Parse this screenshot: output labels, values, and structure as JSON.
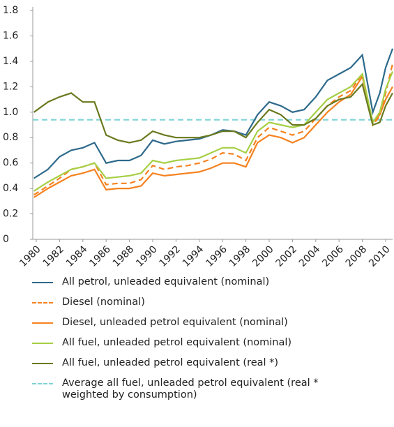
{
  "chart_data": {
    "type": "line",
    "x": [
      1979.8,
      1981,
      1982,
      1983,
      1984,
      1985,
      1986,
      1987,
      1988,
      1989,
      1990,
      1991,
      1992,
      1993,
      1994,
      1995,
      1996,
      1997,
      1998,
      1999,
      2000,
      2001,
      2002,
      2003,
      2004,
      2005,
      2006,
      2007,
      2008,
      2008.9,
      2009.5,
      2010,
      2010.6
    ],
    "series": [
      {
        "name": "All petrol, unleaded equivalent (nominal)",
        "color": "#2e6a8c",
        "dash": false,
        "values": [
          0.48,
          0.55,
          0.65,
          0.7,
          0.72,
          0.76,
          0.6,
          0.62,
          0.62,
          0.66,
          0.78,
          0.75,
          0.77,
          0.78,
          0.79,
          0.82,
          0.86,
          0.85,
          0.82,
          0.98,
          1.08,
          1.05,
          1.0,
          1.02,
          1.12,
          1.25,
          1.3,
          1.35,
          1.45,
          1.0,
          1.15,
          1.35,
          1.5
        ]
      },
      {
        "name": "Diesel (nominal)",
        "color": "#f58220",
        "dash": true,
        "values": [
          0.35,
          0.42,
          0.48,
          0.55,
          0.57,
          0.6,
          0.43,
          0.44,
          0.44,
          0.47,
          0.58,
          0.55,
          0.57,
          0.58,
          0.6,
          0.63,
          0.68,
          0.67,
          0.62,
          0.8,
          0.88,
          0.85,
          0.82,
          0.85,
          0.95,
          1.05,
          1.12,
          1.17,
          1.3,
          0.9,
          0.97,
          1.15,
          1.38
        ]
      },
      {
        "name": "Diesel, unleaded petrol equivalent (nominal)",
        "color": "#f58220",
        "dash": false,
        "values": [
          0.33,
          0.4,
          0.45,
          0.5,
          0.52,
          0.55,
          0.39,
          0.4,
          0.4,
          0.42,
          0.52,
          0.5,
          0.51,
          0.52,
          0.53,
          0.56,
          0.6,
          0.6,
          0.57,
          0.76,
          0.82,
          0.8,
          0.76,
          0.8,
          0.9,
          1.0,
          1.08,
          1.14,
          1.28,
          0.92,
          0.98,
          1.1,
          1.2
        ]
      },
      {
        "name": "All fuel, unleaded petrol equivalent (nominal)",
        "color": "#a6cf45",
        "dash": false,
        "values": [
          0.38,
          0.45,
          0.5,
          0.55,
          0.57,
          0.6,
          0.48,
          0.49,
          0.5,
          0.52,
          0.62,
          0.6,
          0.62,
          0.63,
          0.64,
          0.68,
          0.72,
          0.72,
          0.68,
          0.85,
          0.92,
          0.9,
          0.88,
          0.9,
          1.0,
          1.1,
          1.15,
          1.2,
          1.3,
          0.92,
          1.0,
          1.18,
          1.32
        ]
      },
      {
        "name": "All fuel, unleaded petrol equivalent (real *)",
        "color": "#6a7a1f",
        "dash": false,
        "values": [
          1.0,
          1.08,
          1.12,
          1.15,
          1.08,
          1.08,
          0.82,
          0.78,
          0.76,
          0.78,
          0.85,
          0.82,
          0.8,
          0.8,
          0.8,
          0.82,
          0.85,
          0.85,
          0.8,
          0.92,
          1.02,
          0.98,
          0.9,
          0.9,
          0.95,
          1.05,
          1.1,
          1.12,
          1.22,
          0.9,
          0.92,
          1.05,
          1.15
        ]
      },
      {
        "name": "Average all fuel, unleaded petrol equivalent (real * weighted by consumption)",
        "color": "#7ed3d6",
        "dash": true,
        "x": [
          1979.7,
          2010.6
        ],
        "values": [
          0.94,
          0.94
        ]
      }
    ],
    "xlim": [
      1979.7,
      2010.6
    ],
    "xticks": [
      1980,
      1982,
      1984,
      1986,
      1988,
      1990,
      1992,
      1994,
      1996,
      1998,
      2000,
      2002,
      2004,
      2006,
      2008,
      2010
    ],
    "ylim": [
      0,
      1.8
    ],
    "yticks": [
      0,
      0.2,
      0.4,
      0.6,
      0.8,
      {
        "value": 1,
        "label": "1.0"
      },
      1.2,
      1.4,
      1.6,
      1.8
    ]
  }
}
